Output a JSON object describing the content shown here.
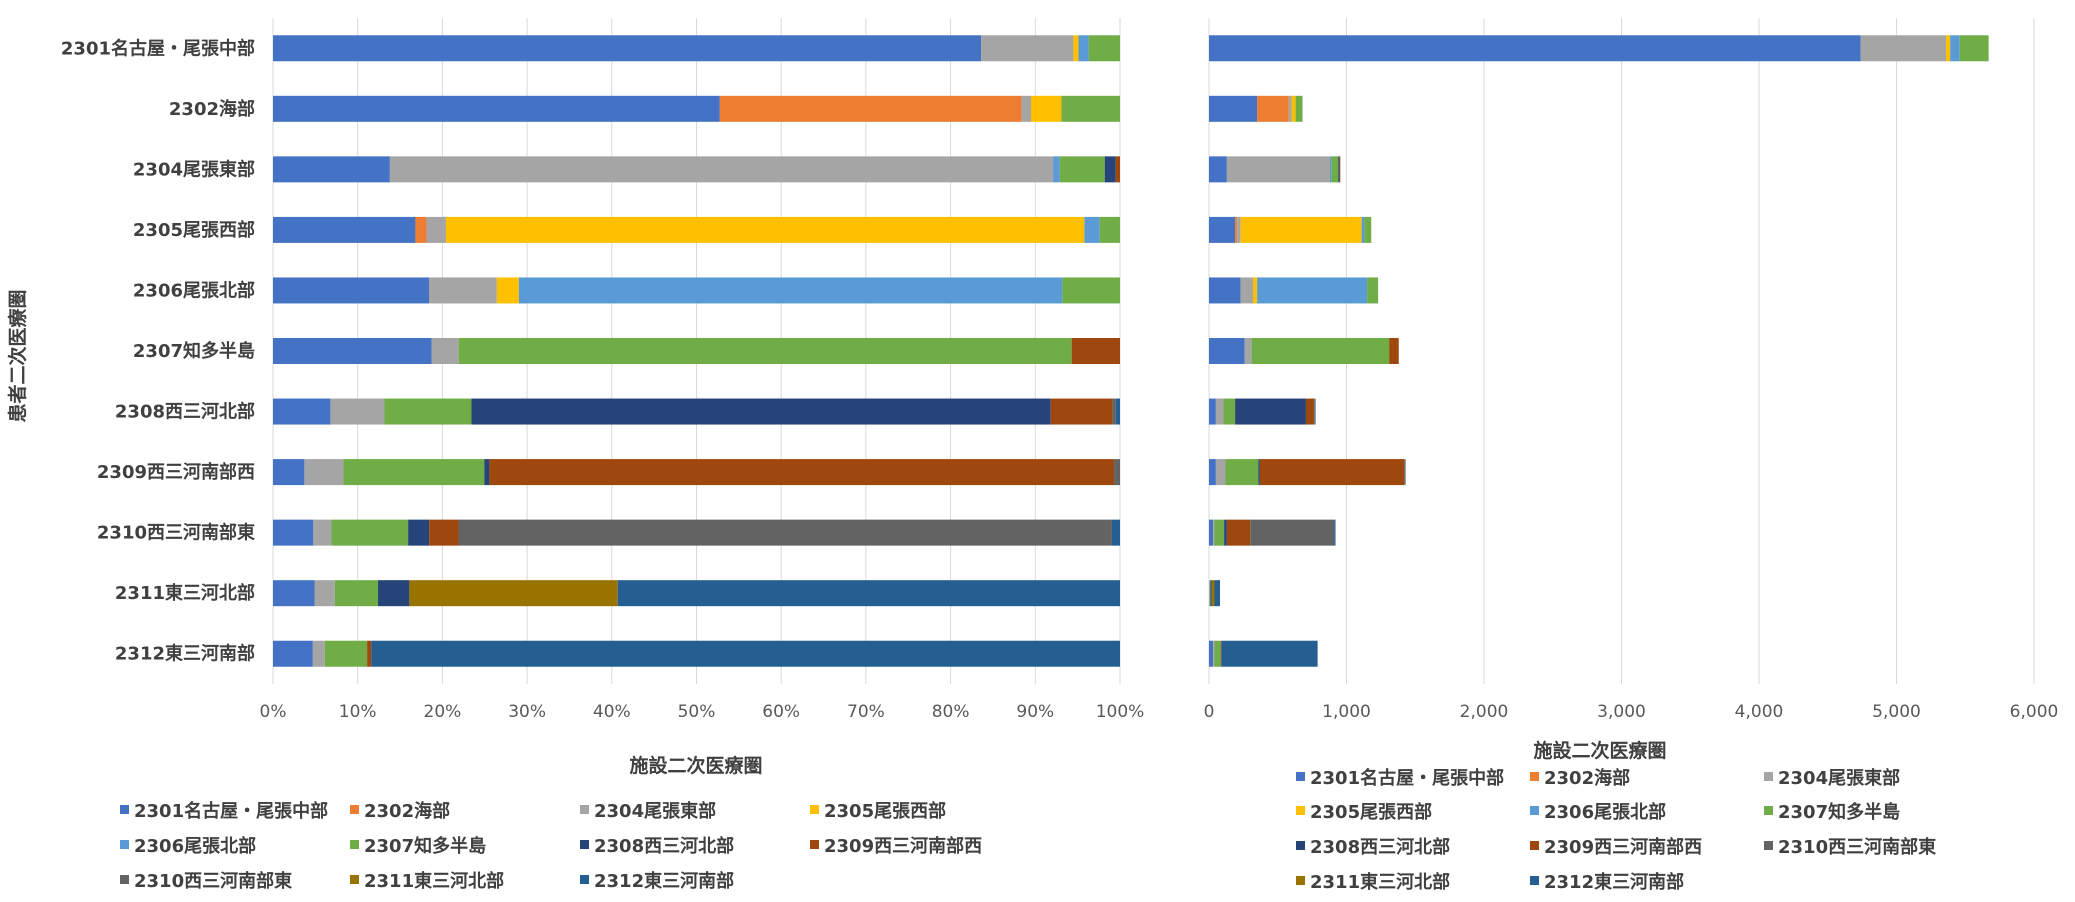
{
  "chart_data": [
    {
      "type": "bar",
      "orientation": "horizontal",
      "stacked": "percent",
      "categories": [
        "2301名古屋・尾張中部",
        "2302海部",
        "2304尾張東部",
        "2305尾張西部",
        "2306尾張北部",
        "2307知多半島",
        "2308西三河北部",
        "2309西三河南部西",
        "2310西三河南部東",
        "2311東三河北部",
        "2312東三河南部"
      ],
      "series": [
        {
          "name": "2301名古屋・尾張中部",
          "values": [
            83.6,
            52.7,
            13.8,
            16.8,
            18.4,
            18.7,
            6.8,
            3.7,
            4.0,
            4.9,
            4.7
          ]
        },
        {
          "name": "2302海部",
          "values": [
            0,
            35.6,
            0,
            1.3,
            0,
            0,
            0,
            0,
            0,
            0,
            0
          ]
        },
        {
          "name": "2304尾張東部",
          "values": [
            10.9,
            1.1,
            78.3,
            2.3,
            8.0,
            3.2,
            6.4,
            4.6,
            1.8,
            2.4,
            1.4
          ]
        },
        {
          "name": "2305尾張西部",
          "values": [
            0.6,
            3.6,
            0,
            75.3,
            2.6,
            0,
            0,
            0,
            0,
            0,
            0
          ]
        },
        {
          "name": "2306尾張北部",
          "values": [
            1.2,
            0,
            0.8,
            1.8,
            64.1,
            0,
            0,
            0,
            0,
            0,
            0
          ]
        },
        {
          "name": "2307知多半島",
          "values": [
            3.7,
            6.9,
            5.3,
            2.4,
            6.8,
            72.3,
            10.3,
            16.6,
            7.6,
            5.1,
            5.0
          ]
        },
        {
          "name": "2308西三河北部",
          "values": [
            0,
            0,
            1.3,
            0,
            0,
            0,
            68.6,
            0.6,
            2.1,
            3.7,
            0
          ]
        },
        {
          "name": "2309西三河南部西",
          "values": [
            0,
            0,
            0.5,
            0,
            0,
            5.7,
            7.3,
            73.6,
            2.9,
            0,
            0.5
          ]
        },
        {
          "name": "2310西三河南部東",
          "values": [
            0,
            0,
            0,
            0,
            0,
            0,
            0.4,
            0.7,
            64.8,
            0,
            0
          ]
        },
        {
          "name": "2311東三河北部",
          "values": [
            0,
            0,
            0,
            0,
            0,
            0,
            0,
            0,
            0,
            24.6,
            0
          ]
        },
        {
          "name": "2312東三河南部",
          "values": [
            0,
            0,
            0,
            0,
            0,
            0,
            0.5,
            0,
            0.8,
            59.3,
            88.3
          ]
        }
      ],
      "xlim": [
        0,
        100
      ],
      "xticks": [
        "0%",
        "10%",
        "20%",
        "30%",
        "40%",
        "50%",
        "60%",
        "70%",
        "80%",
        "90%",
        "100%"
      ],
      "xlabel": "施設二次医療圏",
      "ylabel": "患者二次医療圏",
      "grid": true,
      "legend": "bottom"
    },
    {
      "type": "bar",
      "orientation": "horizontal",
      "stacked": "absolute",
      "categories": [
        "2301名古屋・尾張中部",
        "2302海部",
        "2304尾張東部",
        "2305尾張西部",
        "2306尾張北部",
        "2307知多半島",
        "2308西三河北部",
        "2309西三河南部西",
        "2310西三河南部東",
        "2311東三河北部",
        "2312東三河南部"
      ],
      "series": [
        {
          "name": "2301名古屋・尾張中部",
          "values": [
            4740,
            350,
            130,
            190,
            230,
            260,
            50,
            50,
            30,
            0,
            30
          ]
        },
        {
          "name": "2302海部",
          "values": [
            0,
            230,
            0,
            15,
            0,
            0,
            0,
            0,
            0,
            0,
            0
          ]
        },
        {
          "name": "2304尾張東部",
          "values": [
            620,
            20,
            750,
            25,
            90,
            50,
            55,
            70,
            10,
            5,
            10
          ]
        },
        {
          "name": "2305尾張西部",
          "values": [
            30,
            30,
            0,
            880,
            30,
            0,
            0,
            0,
            0,
            0,
            0
          ]
        },
        {
          "name": "2306尾張北部",
          "values": [
            70,
            0,
            10,
            20,
            800,
            0,
            0,
            0,
            0,
            0,
            0
          ]
        },
        {
          "name": "2307知多半島",
          "values": [
            210,
            50,
            50,
            50,
            80,
            1000,
            85,
            240,
            70,
            5,
            45
          ]
        },
        {
          "name": "2308西三河北部",
          "values": [
            0,
            0,
            10,
            0,
            0,
            0,
            515,
            10,
            20,
            10,
            0
          ]
        },
        {
          "name": "2309西三河南部西",
          "values": [
            0,
            0,
            5,
            0,
            0,
            70,
            60,
            1050,
            170,
            0,
            5
          ]
        },
        {
          "name": "2310西三河南部東",
          "values": [
            0,
            0,
            0,
            0,
            0,
            0,
            5,
            10,
            610,
            0,
            0
          ]
        },
        {
          "name": "2311東三河北部",
          "values": [
            0,
            0,
            0,
            0,
            0,
            0,
            0,
            0,
            0,
            20,
            0
          ]
        },
        {
          "name": "2312東三河南部",
          "values": [
            0,
            0,
            0,
            0,
            0,
            0,
            5,
            0,
            10,
            40,
            700
          ]
        }
      ],
      "xlim": [
        0,
        6000
      ],
      "xticks": [
        "0",
        "1,000",
        "2,000",
        "3,000",
        "4,000",
        "5,000",
        "6,000"
      ],
      "xlabel": "施設二次医療圏",
      "grid": true,
      "legend": "bottom"
    }
  ],
  "colors": [
    "#4472C4",
    "#ED7D31",
    "#A5A5A5",
    "#FFC000",
    "#5B9BD5",
    "#70AD47",
    "#264478",
    "#9E480E",
    "#636363",
    "#997300",
    "#255E91"
  ],
  "legend_items": [
    "2301名古屋・尾張中部",
    "2302海部",
    "2304尾張東部",
    "2305尾張西部",
    "2306尾張北部",
    "2307知多半島",
    "2308西三河北部",
    "2309西三河南部西",
    "2310西三河南部東",
    "2311東三河北部",
    "2312東三河南部"
  ]
}
